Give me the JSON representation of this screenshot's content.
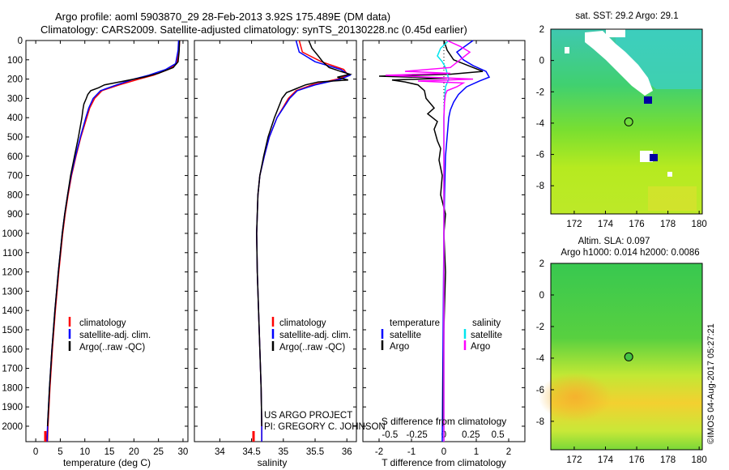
{
  "header": {
    "title_line1": "Argo profile: aoml 5903870_29 28-Feb-2013 3.92S 175.489E (DM data)",
    "title_line2": "Climatology: CARS2009. Satellite-adjusted climatology: synTS_20130228.nc (0.45d earlier)"
  },
  "colors": {
    "climatology": "#ff0000",
    "satellite": "#0000ff",
    "argo": "#000000",
    "salinity_satellite": "#00e5ee",
    "salinity_argo": "#ff00ff"
  },
  "chart_data": [
    {
      "id": "temperature",
      "type": "line",
      "xlabel": "temperature (deg C)",
      "ylabel": "",
      "xlim": [
        -2,
        31
      ],
      "xticks": [
        0,
        5,
        10,
        15,
        20,
        25,
        30
      ],
      "ylim": [
        2080,
        0
      ],
      "yticks": [
        0,
        100,
        200,
        300,
        400,
        500,
        600,
        700,
        800,
        900,
        1000,
        1100,
        1200,
        1300,
        1400,
        1500,
        1600,
        1700,
        1800,
        1900,
        2000
      ],
      "legend": [
        "climatology",
        "satellite-adj. clim.",
        "Argo(..raw -QC)"
      ],
      "series": [
        {
          "name": "climatology",
          "color": "#ff0000",
          "depth": [
            0,
            50,
            120,
            150,
            180,
            200,
            230,
            260,
            300,
            350,
            400,
            500,
            600,
            700,
            800,
            900,
            1000,
            1200,
            1400,
            1600,
            1800,
            2000,
            2080
          ],
          "values": [
            29.3,
            29.2,
            28.7,
            27,
            24,
            21,
            17,
            13.5,
            12,
            11,
            10.4,
            9.2,
            8.2,
            7.3,
            6.6,
            6,
            5.5,
            4.7,
            4,
            3.4,
            2.9,
            2.5,
            2.4
          ]
        },
        {
          "name": "satellite-adj. clim.",
          "color": "#0000ff",
          "depth": [
            0,
            50,
            120,
            150,
            180,
            200,
            230,
            260,
            300,
            350,
            400,
            500,
            600,
            700,
            800,
            900,
            1000,
            1200,
            1400,
            1600,
            1800,
            2000,
            2080
          ],
          "values": [
            29.1,
            29.0,
            28.5,
            26.5,
            23,
            20,
            16.5,
            13.2,
            11.7,
            10.8,
            10.2,
            9.1,
            8.1,
            7.2,
            6.5,
            5.9,
            5.4,
            4.6,
            3.9,
            3.3,
            2.8,
            2.4,
            2.3
          ]
        },
        {
          "name": "Argo(..raw -QC)",
          "color": "#000000",
          "depth": [
            0,
            60,
            110,
            140,
            170,
            190,
            210,
            230,
            245,
            260,
            280,
            300,
            330,
            360,
            400,
            500,
            600,
            700,
            800,
            900,
            1000,
            1200,
            1400,
            1600,
            1800,
            2000
          ],
          "values": [
            29.3,
            29.2,
            29.0,
            28.0,
            25,
            22,
            18,
            14,
            12.8,
            11.2,
            10.6,
            10.3,
            9.8,
            9.6,
            9.4,
            8.7,
            7.9,
            7.1,
            6.5,
            5.9,
            5.4,
            4.6,
            3.9,
            3.3,
            2.8,
            2.4
          ]
        }
      ]
    },
    {
      "id": "salinity",
      "type": "line",
      "xlabel": "salinity",
      "xlim": [
        33.6,
        36.15
      ],
      "xticks": [
        34,
        34.5,
        35,
        35.5,
        36
      ],
      "ylim": [
        2080,
        0
      ],
      "legend": [
        "climatology",
        "satellite-adj. clim.",
        "Argo(..raw -QC)"
      ],
      "annotation": [
        "US ARGO PROJECT",
        "PI: GREGORY C. JOHNSON"
      ],
      "series": [
        {
          "name": "climatology",
          "color": "#ff0000",
          "depth": [
            0,
            60,
            110,
            150,
            180,
            200,
            230,
            260,
            300,
            400,
            500,
            600,
            700,
            800,
            1000,
            1200,
            1400,
            1600,
            1800,
            2000,
            2080
          ],
          "values": [
            35.25,
            35.3,
            35.6,
            35.95,
            36.02,
            35.85,
            35.45,
            35.2,
            35.08,
            34.9,
            34.78,
            34.7,
            34.63,
            34.6,
            34.58,
            34.59,
            34.61,
            34.63,
            34.65,
            34.66,
            34.66
          ]
        },
        {
          "name": "satellite-adj. clim.",
          "color": "#0000ff",
          "depth": [
            0,
            60,
            110,
            150,
            180,
            200,
            230,
            260,
            300,
            400,
            500,
            600,
            700,
            800,
            1000,
            1200,
            1400,
            1600,
            1800,
            2000,
            2080
          ],
          "values": [
            35.2,
            35.25,
            35.5,
            35.9,
            36.05,
            35.9,
            35.5,
            35.22,
            35.1,
            34.9,
            34.78,
            34.7,
            34.63,
            34.6,
            34.58,
            34.59,
            34.61,
            34.63,
            34.65,
            34.66,
            34.66
          ]
        },
        {
          "name": "Argo(..raw -QC)",
          "color": "#000000",
          "depth": [
            0,
            40,
            80,
            110,
            140,
            160,
            175,
            190,
            205,
            215,
            230,
            250,
            270,
            300,
            400,
            500,
            600,
            700,
            800,
            1000,
            1200,
            1400,
            1600,
            1800,
            2000
          ],
          "values": [
            35.4,
            35.45,
            35.55,
            35.62,
            35.72,
            35.9,
            36.05,
            35.85,
            36.02,
            35.55,
            35.35,
            35.2,
            35.05,
            34.98,
            34.86,
            34.76,
            34.69,
            34.63,
            34.6,
            34.58,
            34.59,
            34.61,
            34.63,
            34.65,
            34.66
          ]
        }
      ]
    },
    {
      "id": "difference",
      "type": "line",
      "xlabel": "T difference from climatology",
      "xlabel_top": "S difference from climatology",
      "xlim": [
        -2.5,
        2.5
      ],
      "xticks": [
        -2,
        -1,
        0,
        1,
        2
      ],
      "xticks_top": [
        -0.5,
        -0.25,
        0,
        0.25,
        0.5
      ],
      "ylim": [
        2080,
        0
      ],
      "legend_temperature": [
        "temperature",
        "satellite",
        "Argo"
      ],
      "legend_salinity": [
        "salinity",
        "satellite",
        "Argo"
      ],
      "series": [
        {
          "name": "temperature satellite",
          "color": "#0000ff",
          "depth": [
            0,
            60,
            100,
            130,
            160,
            190,
            210,
            240,
            280,
            320,
            360,
            400,
            500,
            600,
            800,
            1000,
            2080
          ],
          "values": [
            0.9,
            0.4,
            0.6,
            0.9,
            1.3,
            1.4,
            1.1,
            0.7,
            0.45,
            0.3,
            0.2,
            0.15,
            0.1,
            0.05,
            0.02,
            0.0,
            -0.05
          ]
        },
        {
          "name": "temperature Argo",
          "color": "#000000",
          "depth": [
            0,
            50,
            100,
            140,
            160,
            175,
            185,
            195,
            205,
            215,
            230,
            260,
            300,
            350,
            380,
            420,
            460,
            520,
            560,
            620,
            700,
            800,
            900,
            1000,
            1200,
            1500,
            1800,
            2000
          ],
          "values": [
            0.0,
            0.1,
            0.3,
            0.9,
            1.2,
            0.2,
            -2.0,
            0.1,
            -1.6,
            -1.2,
            -0.8,
            -0.6,
            -0.55,
            -0.3,
            -0.5,
            -0.2,
            -0.3,
            -0.2,
            -0.1,
            -0.15,
            -0.05,
            -0.1,
            0.05,
            0.0,
            0.05,
            0.0,
            -0.02,
            -0.02
          ]
        },
        {
          "name": "salinity satellite",
          "color": "#00e5ee",
          "depth": [
            0,
            40,
            80,
            110,
            140,
            170,
            200,
            240,
            300,
            400,
            600,
            1000,
            2080
          ],
          "values": [
            0.15,
            -0.1,
            -0.2,
            -0.05,
            0.05,
            0.1,
            0.15,
            0.05,
            0.02,
            0.0,
            0.0,
            0.0,
            0.0
          ]
        },
        {
          "name": "salinity Argo",
          "color": "#ff00ff",
          "depth": [
            0,
            30,
            60,
            100,
            140,
            160,
            170,
            180,
            200,
            210,
            220,
            240,
            260,
            280,
            320,
            400,
            600,
            1000,
            2080
          ],
          "values": [
            0.1,
            0.5,
            0.8,
            0.5,
            0.2,
            -1.2,
            0.2,
            -1.8,
            0.9,
            -0.8,
            0.6,
            0.4,
            0.1,
            0.05,
            0.02,
            0.0,
            0.0,
            0.0,
            0.0
          ]
        }
      ]
    },
    {
      "id": "sst-map",
      "type": "heatmap",
      "title": "sat. SST: 29.2 Argo: 29.1",
      "xlim": [
        170.5,
        180.2
      ],
      "ylim": [
        -9.8,
        2.0
      ],
      "xticks": [
        172,
        174,
        176,
        178,
        180
      ],
      "yticks": [
        2,
        0,
        -2,
        -4,
        -6,
        -8
      ],
      "argo_position": [
        175.489,
        -3.92
      ]
    },
    {
      "id": "sla-map",
      "type": "heatmap",
      "title_line1": "Altim. SLA: 0.097",
      "title_line2": "Argo h1000: 0.014 h2000: 0.0086",
      "xlim": [
        170.5,
        180.2
      ],
      "ylim": [
        -9.8,
        2.0
      ],
      "xticks": [
        172,
        174,
        176,
        178,
        180
      ],
      "yticks": [
        2,
        0,
        -2,
        -4,
        -6,
        -8
      ],
      "argo_position": [
        175.489,
        -3.92
      ]
    }
  ],
  "watermark": "©IMOS 04-Aug-2017 05:27:21"
}
